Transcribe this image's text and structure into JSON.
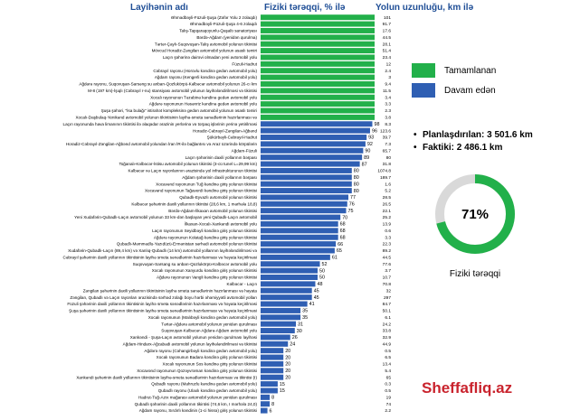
{
  "headers": {
    "name": "Layihənin adı",
    "progress": "Fiziki tərəqqi, % ilə",
    "length": "Yolun uzunluğu, km ilə"
  },
  "legend": [
    {
      "label": "Tamamlanan",
      "color": "#22b04a"
    },
    {
      "label": "Davam edən",
      "color": "#2f5fb3"
    }
  ],
  "stats": {
    "planned": "Planlaşdırılan: 3 501.6 km",
    "actual": "Faktiki: 2 486.1 km"
  },
  "donut": {
    "value": 71,
    "text": "71%",
    "label": "Fiziki tərəqqi",
    "color": "#22b04a",
    "rest_color": "#d9d9d9"
  },
  "watermark": "Sheffafliq.az",
  "chart_data": {
    "type": "bar",
    "orientation": "horizontal",
    "title": "",
    "xlabel": "Fiziki tərəqqi, % ilə",
    "ylabel": "Layihənin adı",
    "xlim": [
      0,
      100
    ],
    "series": [
      {
        "name": "Fiziki tərəqqi, % ilə",
        "unit": "%"
      }
    ],
    "categories": [
      "Əhmədbəyli-Füzuli-Şuşa (Zəfər Yolu 2 zolaqdı)",
      "Əhmədbəyli-Füzuli-Şuşa 4-6 zolaqdı",
      "Talış-Tapqaraqoyunlu-Qaşaltı sanatoriyası",
      "Bərdə-Ağdam (yenidən qurulma)",
      "Tərtər-Çaylı-Suqovuşan-Talış avtomobil yolunun tikintisi",
      "Mövcud Horadiz-Zəngilan avtomobil yolunun əsaslı təmiri",
      "Laçın şəhərinə dairəvi olmadan yeni avtomobil yolu",
      "Füzuli-Hadrut",
      "Cəbrayıl rayonu (Horovlu kəndinə gedən avtomobil yolu)",
      "Ağdam rayonu (Kengerli kəndinə gedən avtomobil yolu)",
      "Ağdərə rayonu, Suqovuşan-Sarsəng su anbarı-Qozlukörpü-Kəlbəcər avtomobil yolunun 26-cı km",
      "M-8 (197 km)-İşıqlı (Cəbrayıl r-nu) stansiyası avtomobil yolunun layihələndirilməsi və tikintisi",
      "Xocalı rayonunun Təzəbinə kəndinə gedən avtomobil yolu",
      "Ağdərə rayonunun Həsənriz kəndinə gedən avtomobil yolu",
      "Şuşa şəhəri, \"İsa bulağı\" istirahət kompleksinə gedən avtomobil yolunun əsaslı təmiri",
      "Xocalı-Daşbulaq-Yenikənd avtomobil yolunun tikintisinin layihə-smeta sənədlərinin hazırlanması və",
      "Laçın rayonunda hava limanının tikintisi ilə əlaqədar ərazinin yerlərinə və torpaq işlərinin yerinə yetirilməsi",
      "Horadiz-Cəbrayıl-Zəngilan-Ağbənd",
      "Şükürbəyli-Cəbrayıl-Hadrut",
      "Horadiz-Cəbrayıl-Zəngilan-Ağbənd avtomobil yolundan İran İR-ilə bağlantısı və Araz üzərində körpülərin",
      "Ağdam-Füzuli",
      "Laçın şəhərinin daxili yollarının bərpası",
      "Toğanalı-Kəlbəcər-İstisu avtomobil yolunun tikintisi (3-cü tunel L=29,99 km)",
      "Kəlbəcər və Laçın rayonlarının ərazisində yol infrastrukturunun tikintisi",
      "Ağdam şəhərinin daxili yollarının bərpası",
      "Xocavənd rayonunun Tuğ kəndinə giriş yolunun tikintisi",
      "Xocavənd rayonunun Tağaverdi kəndinə giriş yolunun tikintisi",
      "Qubadlı-Eyvazlı avtomobil yolunun tikintisi",
      "Kəlbəcər şəhərinin daxili yollarının tikintisi (28,6 km, 1 mərhələ 18,8)",
      "Bərdə-Ağdam-İlkaxan avtomobil yolunun tikintisi",
      "Yeni Xudafərin-Qubadlı-Laçın avtomobil yolunun 33 km-dən başlayan yeni Qubadlı-Laçın avtomobil",
      "İlkaxan-Xocalı-Xankəndi avtomobil yolu",
      "Laçın rayonunun Seyidbəyli kəndinə giriş yolunun tikintisi",
      "Ağdərə rayonunun Kolatağ kəndinə giriş yolunun tikintisi",
      "Qubadlı-Məmmədlu-Yazıdüzü-Ermənistan sərhədi avtomobil yolunun tikintisi",
      "Xudafərin-Qubadlı-Laçın (89,4 km) və Xanlıq-Qubadlı (14 km) avtomobil yollarının layihələndirilməsi və",
      "Cəbrayıl şəhərinin daxili yollarının tikintisinin layihə smeta sənədlərinin hazırlanması və həyata keçirilməsi",
      "Suqovuşan-Sarsang su anbarı-Qozlukörpü-Kəlbəcər avtomobil yolu",
      "Xocalı rayonunun Xanyurdu kəndinə giriş yolunun tikintisi",
      "Ağdərə rayonunun Vangli kəndinə giriş yolunun tikintisi",
      "Kəlbəcər - Laçın",
      "Zəngilan şəhərinin daxili yollarının tikintisinin layihə smeta sənədlərinin hazırlanması və həyata",
      "Zəngilan, Qubadlı və Laçın rayonları ərazisində sərhəd zolağı boyu hərbi əhəmiyyətli avtomobil yolları",
      "Füzuli şəhərinin daxili yollarının tikintisinin layihə smeta sənədlərinin hazırlanması və həyata keçirilməsi",
      "Şuşa şəhərinin daxili yollarının tikintisinin layihə smeta sənədlərinin hazırlanması və həyata keçirilməsi",
      "Xocalı rayonunun (Malıbəyli kəndinə gedən avtomobil yolu)",
      "Tərtər-Ağdərə avtomobil yolunun yenidən qurulması",
      "Suqovuşan-Kəlbəcər-Ağdərə-Ağdam avtomobil yolu",
      "Xankəndi - Şuşa-Laçın avtomobil yolunun yenidən qurulması layihəsi",
      "Ağdam-Hindarx-Ağcabədi avtomobil yolunun layihələndirilməsi və tikintisi",
      "Ağdərə rayonu (Cəhangirbəyli kəndinə gedən avtomobil yolu)",
      "Xocalı rayonunun Badara kəndinə giriş yolunun tikintisi",
      "Xocalı rayonunun Sos kəndinə giriş yolunun tikintisi",
      "Xocavənd rayonunun Qozəyvrəman kəndinə giriş yolunun tikintisi",
      "Xankəndi şəhərinin daxili yollarının tikintisinin layihə-smeta sənədlərinin hazırlanması və tikintisi (I)",
      "Qubadlı rayonu (Mahruzlu kəndinə gedən avtomobil yolu)",
      "Qubadlı rayonu (Ulaxlı kəndinə gedən avtomobil yolu)",
      "Hadrut-Tuğ-Azıx mağarası avtomobil yolunun yenidən qurulması",
      "Qubadlı şəhərinin daxili yollarının tikintisi (74,6 km, I mərhələ 24,0)",
      "Ağdam rayonu, Sırdırlı kəndinin (1-ci hissə) giriş yolunun tikintisi"
    ],
    "values": [
      100,
      100,
      100,
      100,
      100,
      100,
      100,
      100,
      100,
      100,
      100,
      100,
      100,
      100,
      100,
      100,
      98,
      96,
      93,
      92,
      90,
      89,
      87,
      80,
      80,
      80,
      80,
      77,
      76,
      75,
      70,
      68,
      68,
      68,
      66,
      65,
      61,
      52,
      50,
      50,
      48,
      45,
      45,
      41,
      35,
      35,
      31,
      30,
      26,
      24,
      20,
      20,
      20,
      20,
      20,
      15,
      15,
      8,
      8,
      6
    ],
    "lengths": [
      "101",
      "91.7",
      "17.6",
      "44.5",
      "28.1",
      "51.4",
      "23.4",
      "12",
      "2.4",
      "3",
      "9.4",
      "11.5",
      "3.4",
      "3.3",
      "2.3",
      "3.8",
      "8.3",
      "123.6",
      "39.7",
      "7.3",
      "65.7",
      "80",
      "31.8",
      "1074.8",
      "189.7",
      "1.6",
      "5.2",
      "28.5",
      "26.5",
      "22.1",
      "25.2",
      "13.9",
      "0.6",
      "3.3",
      "22.3",
      "89.2",
      "44.5",
      "77.6",
      "3.7",
      "10.7",
      "70.8",
      "32",
      "297",
      "84.7",
      "50.1",
      "6.1",
      "24.2",
      "33.8",
      "32.9",
      "44.9",
      "0.5",
      "6.5",
      "13.4",
      "5.4",
      "65",
      "0.3",
      "0.5",
      "19",
      "74",
      "2.2"
    ],
    "colors": {
      "completed": "#22b04a",
      "ongoing": "#2f5fb3"
    }
  }
}
